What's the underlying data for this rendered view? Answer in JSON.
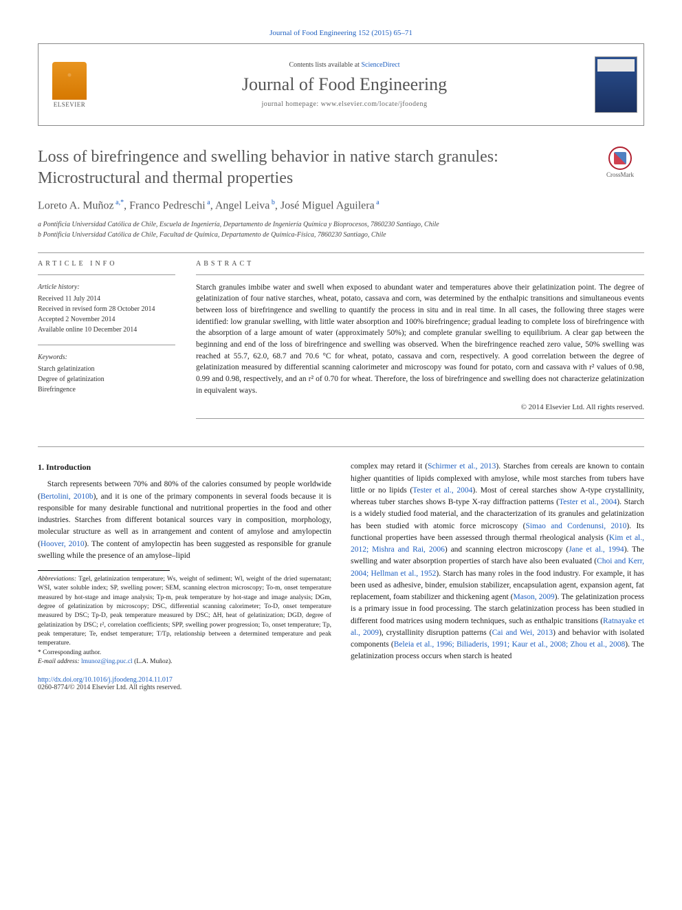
{
  "topbar": {
    "citation": "Journal of Food Engineering 152 (2015) 65–71"
  },
  "header": {
    "contents_prefix": "Contents lists available at ",
    "contents_link": "ScienceDirect",
    "journal": "Journal of Food Engineering",
    "homepage": "journal homepage: www.elsevier.com/locate/jfoodeng",
    "publisher": "ELSEVIER",
    "thumb_label_top": "journal of",
    "thumb_label_bottom": "food engineering"
  },
  "crossmark": {
    "label": "CrossMark"
  },
  "title": "Loss of birefringence and swelling behavior in native starch granules: Microstructural and thermal properties",
  "authors_html": "Loreto A. Muñoz<sup> a,*</sup>, Franco Pedreschi<sup> a</sup>, Angel Leiva<sup> b</sup>, José Miguel Aguilera<sup> a</sup>",
  "affiliations": [
    "a Pontificia Universidad Católica de Chile, Escuela de Ingeniería, Departamento de Ingeniería Química y Bioprocesos, 7860230 Santiago, Chile",
    "b Pontificia Universidad Católica de Chile, Facultad de Química, Departamento de Química-Física, 7860230 Santiago, Chile"
  ],
  "article_info": {
    "heading": "ARTICLE INFO",
    "history_label": "Article history:",
    "history": [
      "Received 11 July 2014",
      "Received in revised form 28 October 2014",
      "Accepted 2 November 2014",
      "Available online 10 December 2014"
    ],
    "keywords_label": "Keywords:",
    "keywords": [
      "Starch gelatinization",
      "Degree of gelatinization",
      "Birefringence"
    ]
  },
  "abstract": {
    "heading": "ABSTRACT",
    "text": "Starch granules imbibe water and swell when exposed to abundant water and temperatures above their gelatinization point. The degree of gelatinization of four native starches, wheat, potato, cassava and corn, was determined by the enthalpic transitions and simultaneous events between loss of birefringence and swelling to quantify the process in situ and in real time. In all cases, the following three stages were identified: low granular swelling, with little water absorption and 100% birefringence; gradual leading to complete loss of birefringence with the absorption of a large amount of water (approximately 50%); and complete granular swelling to equilibrium. A clear gap between the beginning and end of the loss of birefringence and swelling was observed. When the birefringence reached zero value, 50% swelling was reached at 55.7, 62.0, 68.7 and 70.6 °C for wheat, potato, cassava and corn, respectively. A good correlation between the degree of gelatinization measured by differential scanning calorimeter and microscopy was found for potato, corn and cassava with r² values of 0.98, 0.99 and 0.98, respectively, and an r² of 0.70 for wheat. Therefore, the loss of birefringence and swelling does not characterize gelatinization in equivalent ways.",
    "copyright": "© 2014 Elsevier Ltd. All rights reserved."
  },
  "section1": {
    "heading": "1. Introduction"
  },
  "body": {
    "p1_a": "Starch represents between 70% and 80% of the calories consumed by people worldwide (",
    "p1_ref1": "Bertolini, 2010b",
    "p1_b": "), and it is one of the primary components in several foods because it is responsible for many desirable functional and nutritional properties in the food and other industries. Starches from different botanical sources vary in composition, morphology, molecular structure as well as in arrangement and content of amylose and amylopectin (",
    "p1_ref2": "Hoover, 2010",
    "p1_c": "). The content of amylopectin has been suggested as responsible for granule swelling while the presence of an amylose–lipid",
    "p2_a": "complex may retard it (",
    "p2_ref1": "Schirmer et al., 2013",
    "p2_b": "). Starches from cereals are known to contain higher quantities of lipids complexed with amylose, while most starches from tubers have little or no lipids (",
    "p2_ref2": "Tester et al., 2004",
    "p2_c": "). Most of cereal starches show A-type crystallinity, whereas tuber starches shows B-type X-ray diffraction patterns (",
    "p2_ref3": "Tester et al., 2004",
    "p2_d": "). Starch is a widely studied food material, and the characterization of its granules and gelatinization has been studied with atomic force microscopy (",
    "p2_ref4": "Simao and Cordenunsi, 2010",
    "p2_e": "). Its functional properties have been assessed through thermal rheological analysis (",
    "p2_ref5": "Kim et al., 2012; Mishra and Rai, 2006",
    "p2_f": ") and scanning electron microscopy (",
    "p2_ref6": "Jane et al., 1994",
    "p2_g": "). The swelling and water absorption properties of starch have also been evaluated (",
    "p2_ref7": "Choi and Kerr, 2004; Hellman et al., 1952",
    "p2_h": "). Starch has many roles in the food industry. For example, it has been used as adhesive, binder, emulsion stabilizer, encapsulation agent, expansion agent, fat replacement, foam stabilizer and thickening agent (",
    "p2_ref8": "Mason, 2009",
    "p2_i": "). The gelatinization process is a primary issue in food processing. The starch gelatinization process has been studied in different food matrices using modern techniques, such as enthalpic transitions (",
    "p2_ref9": "Ratnayake et al., 2009",
    "p2_j": "), crystallinity disruption patterns (",
    "p2_ref10": "Cai and Wei, 2013",
    "p2_k": ") and behavior with isolated components (",
    "p2_ref11": "Beleia et al., 1996; Biliaderis, 1991; Kaur et al., 2008; Zhou et al., 2008",
    "p2_l": "). The gelatinization process occurs when starch is heated"
  },
  "footnotes": {
    "abbrev_label": "Abbreviations:",
    "abbrev_text": " Tgel, gelatinization temperature; Ws, weight of sediment; Wl, weight of the dried supernatant; WSI, water soluble index; SP, swelling power; SEM, scanning electron microscopy; To-m, onset temperature measured by hot-stage and image analysis; Tp-m, peak temperature by hot-stage and image analysis; DGm, degree of gelatinization by microscopy; DSC, differential scanning calorimeter; To-D, onset temperature measured by DSC; Tp-D, peak temperature measured by DSC; ΔH, heat of gelatinization; DGD, degree of gelatinization by DSC; r², correlation coefficients; SPP, swelling power progression; To, onset temperature; Tp, peak temperature; Te, endset temperature; T/Tp, relationship between a determined temperature and peak temperature.",
    "corr_label": "* Corresponding author.",
    "email_label": "E-mail address: ",
    "email": "lmunoz@ing.puc.cl",
    "email_tail": " (L.A. Muñoz)."
  },
  "footer": {
    "doi": "http://dx.doi.org/10.1016/j.jfoodeng.2014.11.017",
    "issn": "0260-8774/© 2014 Elsevier Ltd. All rights reserved."
  },
  "colors": {
    "link": "#2060c0",
    "heading_gray": "#585858",
    "rule": "#999999",
    "elsevier_orange": "#e8941f"
  },
  "typography": {
    "title_pt": 24,
    "authors_pt": 16,
    "body_pt": 11.5,
    "footnote_pt": 9.5,
    "journal_pt": 26
  }
}
